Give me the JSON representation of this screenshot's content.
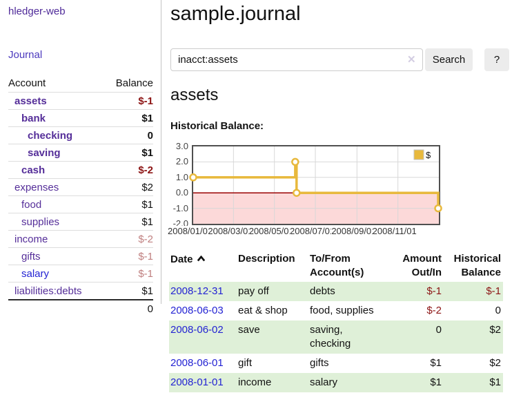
{
  "sidebar": {
    "brand": "hledger-web",
    "nav_journal": "Journal",
    "accounts_table": {
      "account_header": "Account",
      "balance_header": "Balance",
      "rows": [
        {
          "account": "assets",
          "balance": "$-1",
          "depth": 1,
          "bold": true,
          "link_color": "purple",
          "balance_style": "neg-strong"
        },
        {
          "account": "bank",
          "balance": "$1",
          "depth": 2,
          "bold": true,
          "link_color": "purple",
          "balance_style": ""
        },
        {
          "account": "checking",
          "balance": "0",
          "depth": 3,
          "bold": true,
          "link_color": "purple",
          "balance_style": ""
        },
        {
          "account": "saving",
          "balance": "$1",
          "depth": 3,
          "bold": true,
          "link_color": "purple",
          "balance_style": ""
        },
        {
          "account": "cash",
          "balance": "$-2",
          "depth": 2,
          "bold": true,
          "link_color": "purple",
          "balance_style": "neg-strong"
        },
        {
          "account": "expenses",
          "balance": "$2",
          "depth": 1,
          "bold": false,
          "link_color": "purple",
          "balance_style": ""
        },
        {
          "account": "food",
          "balance": "$1",
          "depth": 2,
          "bold": false,
          "link_color": "purple",
          "balance_style": ""
        },
        {
          "account": "supplies",
          "balance": "$1",
          "depth": 2,
          "bold": false,
          "link_color": "purple",
          "balance_style": ""
        },
        {
          "account": "income",
          "balance": "$-2",
          "depth": 1,
          "bold": false,
          "link_color": "purple",
          "balance_style": "neg-muted"
        },
        {
          "account": "gifts",
          "balance": "$-1",
          "depth": 2,
          "bold": false,
          "link_color": "purple",
          "balance_style": "neg-muted"
        },
        {
          "account": "salary",
          "balance": "$-1",
          "depth": 2,
          "bold": false,
          "link_color": "blue",
          "balance_style": "neg-muted"
        },
        {
          "account": "liabilities:debts",
          "balance": "$1",
          "depth": 1,
          "bold": false,
          "link_color": "purple",
          "balance_style": ""
        }
      ],
      "total": "0"
    }
  },
  "header": {
    "title": "sample.journal"
  },
  "search": {
    "value": "inacct:assets",
    "clear_icon": "✕",
    "button_label": "Search",
    "help_label": "?"
  },
  "account_page": {
    "heading": "assets",
    "chart_label": "Historical Balance:"
  },
  "chart_data": {
    "type": "line",
    "step": true,
    "title": "Historical Balance:",
    "series": [
      {
        "name": "$",
        "points": [
          [
            "2008-01-01",
            1
          ],
          [
            "2008-06-01",
            2
          ],
          [
            "2008-06-03",
            0
          ],
          [
            "2008-12-31",
            -1
          ]
        ]
      }
    ],
    "ylim": [
      -2,
      3
    ],
    "yticks": [
      "3.0",
      "2.0",
      "1.0",
      "0.0",
      "-1.0",
      "-2.0"
    ],
    "xticks": [
      "2008/01/01",
      "2008/03/01",
      "2008/05/01",
      "2008/07/01",
      "2008/09/01",
      "2008/11/01"
    ],
    "xdomain": [
      "2008-01-01",
      "2009-01-01"
    ],
    "legend_label": "$",
    "legend_position": "top-right",
    "grid": true,
    "line_color": "#E8B93D",
    "negative_fill": "#FCD9D9",
    "zero_line_color": "#990000",
    "grid_color": "#d8d8d8"
  },
  "register_table": {
    "headers": [
      {
        "line1": "Date"
      },
      {
        "line1": "Description"
      },
      {
        "line1": "To/From",
        "line2": "Account(s)"
      },
      {
        "line1": "Amount",
        "line2": "Out/In"
      },
      {
        "line1": "Historical",
        "line2": "Balance"
      }
    ],
    "rows": [
      {
        "date": "2008-12-31",
        "description": "pay off",
        "accounts": "debts",
        "amount": "$-1",
        "amount_negative": true,
        "balance": "$-1",
        "balance_negative": true
      },
      {
        "date": "2008-06-03",
        "description": "eat & shop",
        "accounts": "food, supplies",
        "amount": "$-2",
        "amount_negative": true,
        "balance": "0",
        "balance_negative": false
      },
      {
        "date": "2008-06-02",
        "description": "save",
        "accounts": "saving, checking",
        "amount": "0",
        "amount_negative": false,
        "balance": "$2",
        "balance_negative": false
      },
      {
        "date": "2008-06-01",
        "description": "gift",
        "accounts": "gifts",
        "amount": "$1",
        "amount_negative": false,
        "balance": "$2",
        "balance_negative": false
      },
      {
        "date": "2008-01-01",
        "description": "income",
        "accounts": "salary",
        "amount": "$1",
        "amount_negative": false,
        "balance": "$1",
        "balance_negative": false
      }
    ]
  }
}
